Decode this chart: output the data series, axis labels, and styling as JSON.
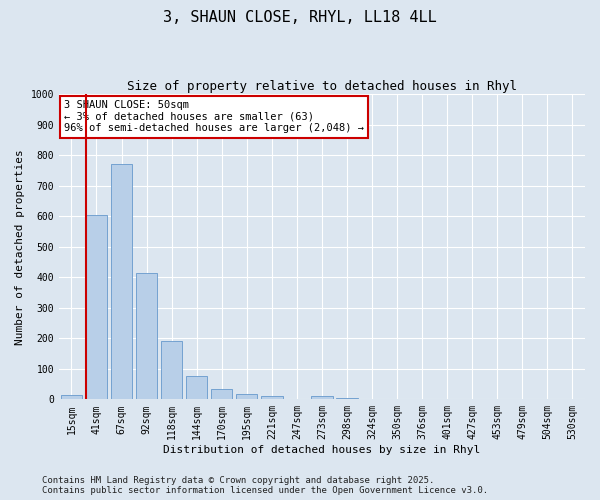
{
  "title": "3, SHAUN CLOSE, RHYL, LL18 4LL",
  "subtitle": "Size of property relative to detached houses in Rhyl",
  "xlabel": "Distribution of detached houses by size in Rhyl",
  "ylabel": "Number of detached properties",
  "background_color": "#dce6f0",
  "fig_background_color": "#dce6f0",
  "bar_color": "#b8cfe8",
  "bar_edge_color": "#6699cc",
  "grid_color": "#ffffff",
  "categories": [
    "15sqm",
    "41sqm",
    "67sqm",
    "92sqm",
    "118sqm",
    "144sqm",
    "170sqm",
    "195sqm",
    "221sqm",
    "247sqm",
    "273sqm",
    "298sqm",
    "324sqm",
    "350sqm",
    "376sqm",
    "401sqm",
    "427sqm",
    "453sqm",
    "479sqm",
    "504sqm",
    "530sqm"
  ],
  "values": [
    15,
    605,
    770,
    415,
    190,
    75,
    35,
    18,
    12,
    0,
    12,
    5,
    0,
    0,
    0,
    0,
    0,
    0,
    0,
    0,
    0
  ],
  "ylim": [
    0,
    1000
  ],
  "yticks": [
    0,
    100,
    200,
    300,
    400,
    500,
    600,
    700,
    800,
    900,
    1000
  ],
  "red_line_x": 0.58,
  "annotation_text": "3 SHAUN CLOSE: 50sqm\n← 3% of detached houses are smaller (63)\n96% of semi-detached houses are larger (2,048) →",
  "annotation_box_color": "#ffffff",
  "annotation_box_edge_color": "#cc0000",
  "red_line_color": "#cc0000",
  "footer_line1": "Contains HM Land Registry data © Crown copyright and database right 2025.",
  "footer_line2": "Contains public sector information licensed under the Open Government Licence v3.0.",
  "title_fontsize": 11,
  "subtitle_fontsize": 9,
  "axis_label_fontsize": 8,
  "tick_fontsize": 7,
  "annotation_fontsize": 7.5,
  "footer_fontsize": 6.5
}
